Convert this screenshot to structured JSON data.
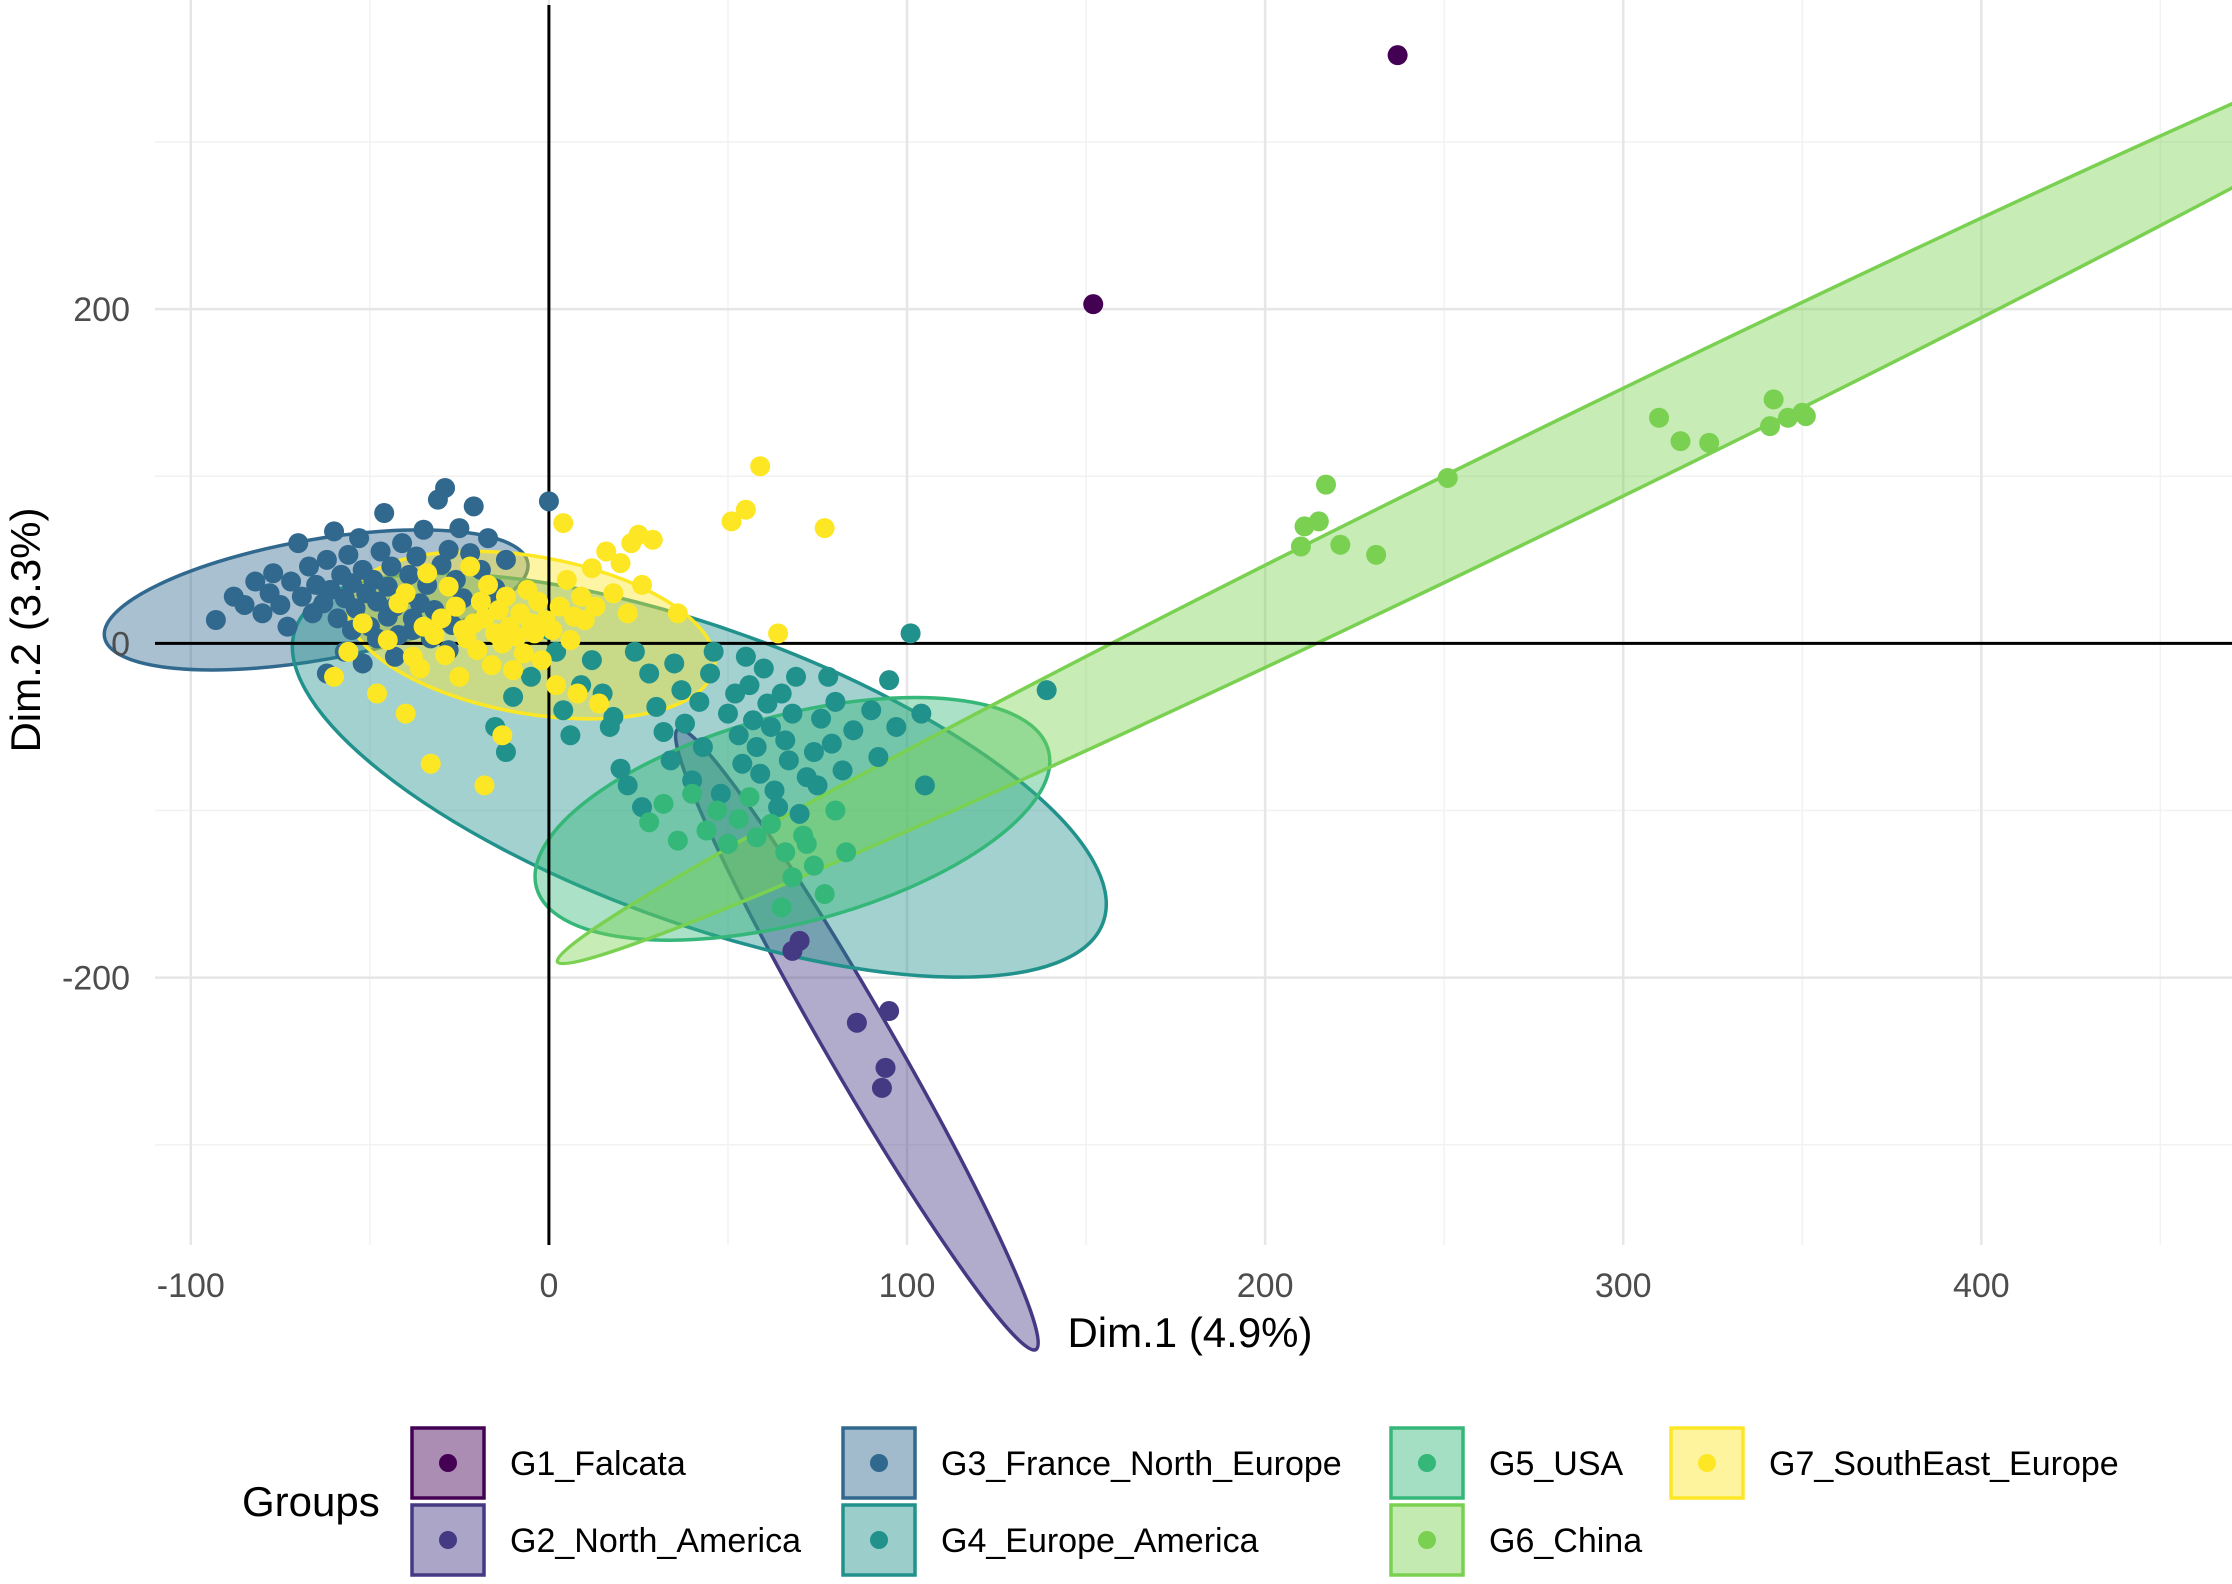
{
  "chart_data": {
    "type": "scatter",
    "xlabel": "Dim.1 (4.9%)",
    "ylabel": "Dim.2 (3.3%)",
    "xlim": [
      -110,
      470
    ],
    "ylim": [
      -360,
      385
    ],
    "x_ticks": [
      -100,
      0,
      100,
      200,
      300,
      400
    ],
    "x_tick_labels": [
      "-100",
      "0",
      "100",
      "200",
      "300",
      "400"
    ],
    "y_ticks": [
      -200,
      0,
      200
    ],
    "y_tick_labels": [
      "-200",
      "0",
      "200"
    ],
    "grid": true,
    "reference_lines": {
      "x": 0,
      "y": 0
    },
    "legend": {
      "title": "Groups",
      "position": "bottom"
    },
    "series": [
      {
        "name": "G1_Falcata",
        "color": "#440154",
        "points": [
          [
            152,
            203
          ],
          [
            237,
            352
          ]
        ],
        "ellipse": null
      },
      {
        "name": "G2_North_America",
        "color": "#443983",
        "points": [
          [
            68,
            -184
          ],
          [
            86,
            -227
          ],
          [
            95,
            -220
          ],
          [
            94,
            -254
          ],
          [
            93,
            -266
          ],
          [
            70,
            -178
          ]
        ],
        "ellipse": {
          "cx": 86,
          "cy": -237,
          "rx": 100,
          "ry": 20,
          "angle_deg": -60
        }
      },
      {
        "name": "G3_France_North_Europe",
        "color": "#31688e",
        "points": [
          [
            -93,
            14
          ],
          [
            -88,
            28
          ],
          [
            -85,
            23
          ],
          [
            -82,
            37
          ],
          [
            -80,
            18
          ],
          [
            -78,
            30
          ],
          [
            -77,
            42
          ],
          [
            -75,
            23
          ],
          [
            -73,
            10
          ],
          [
            -72,
            37
          ],
          [
            -70,
            60
          ],
          [
            -69,
            28
          ],
          [
            -67,
            46
          ],
          [
            -66,
            18
          ],
          [
            -65,
            35
          ],
          [
            -63,
            24
          ],
          [
            -62,
            50
          ],
          [
            -61,
            32
          ],
          [
            -60,
            67
          ],
          [
            -59,
            15
          ],
          [
            -58,
            41
          ],
          [
            -57,
            27
          ],
          [
            -56,
            53
          ],
          [
            -55,
            8
          ],
          [
            -55,
            36
          ],
          [
            -54,
            21
          ],
          [
            -53,
            63
          ],
          [
            -52,
            44
          ],
          [
            -51,
            30
          ],
          [
            -50,
            10
          ],
          [
            -49,
            38
          ],
          [
            -48,
            25
          ],
          [
            -47,
            55
          ],
          [
            -46,
            78
          ],
          [
            -45,
            16
          ],
          [
            -45,
            34
          ],
          [
            -44,
            46
          ],
          [
            -43,
            22
          ],
          [
            -42,
            5
          ],
          [
            -41,
            60
          ],
          [
            -40,
            29
          ],
          [
            -39,
            41
          ],
          [
            -38,
            15
          ],
          [
            -37,
            52
          ],
          [
            -36,
            24
          ],
          [
            -35,
            68
          ],
          [
            -34,
            35
          ],
          [
            -32,
            20
          ],
          [
            -31,
            86
          ],
          [
            -30,
            47
          ],
          [
            -29,
            93
          ],
          [
            -28,
            56
          ],
          [
            -27,
            11
          ],
          [
            -26,
            38
          ],
          [
            -25,
            69
          ],
          [
            -24,
            27
          ],
          [
            -22,
            54
          ],
          [
            -21,
            82
          ],
          [
            -19,
            44
          ],
          [
            -17,
            63
          ],
          [
            -15,
            33
          ],
          [
            -14,
            24
          ],
          [
            -12,
            50
          ],
          [
            -62,
            -18
          ],
          [
            -57,
            -5
          ],
          [
            -52,
            -12
          ],
          [
            -48,
            3
          ],
          [
            -43,
            -8
          ],
          [
            -38,
            8
          ],
          [
            -33,
            3
          ],
          [
            -28,
            -4
          ],
          [
            0,
            85
          ]
        ],
        "ellipse": {
          "cx": -65,
          "cy": 26,
          "rx": 60,
          "ry": 36,
          "angle_deg": 10
        }
      },
      {
        "name": "G4_Europe_America",
        "color": "#21918c",
        "points": [
          [
            -15,
            -50
          ],
          [
            -12,
            -65
          ],
          [
            -10,
            -32
          ],
          [
            -5,
            -20
          ],
          [
            0,
            8
          ],
          [
            2,
            -5
          ],
          [
            4,
            -40
          ],
          [
            6,
            -55
          ],
          [
            9,
            -25
          ],
          [
            12,
            -10
          ],
          [
            15,
            -30
          ],
          [
            18,
            -44
          ],
          [
            20,
            -75
          ],
          [
            22,
            -85
          ],
          [
            24,
            -5
          ],
          [
            26,
            -98
          ],
          [
            28,
            -18
          ],
          [
            30,
            -38
          ],
          [
            32,
            -53
          ],
          [
            34,
            -70
          ],
          [
            35,
            -12
          ],
          [
            37,
            -28
          ],
          [
            38,
            -48
          ],
          [
            40,
            -82
          ],
          [
            42,
            -35
          ],
          [
            43,
            -62
          ],
          [
            45,
            -18
          ],
          [
            46,
            -5
          ],
          [
            48,
            -90
          ],
          [
            50,
            -42
          ],
          [
            52,
            -30
          ],
          [
            53,
            -55
          ],
          [
            54,
            -72
          ],
          [
            55,
            -8
          ],
          [
            56,
            -25
          ],
          [
            57,
            -46
          ],
          [
            58,
            -62
          ],
          [
            59,
            -78
          ],
          [
            60,
            -15
          ],
          [
            61,
            -36
          ],
          [
            62,
            -50
          ],
          [
            63,
            -88
          ],
          [
            64,
            -98
          ],
          [
            65,
            -30
          ],
          [
            66,
            -58
          ],
          [
            67,
            -70
          ],
          [
            68,
            -42
          ],
          [
            69,
            -20
          ],
          [
            70,
            -102
          ],
          [
            72,
            -80
          ],
          [
            74,
            -65
          ],
          [
            75,
            -85
          ],
          [
            76,
            -45
          ],
          [
            78,
            -20
          ],
          [
            79,
            -60
          ],
          [
            80,
            -35
          ],
          [
            82,
            -76
          ],
          [
            85,
            -52
          ],
          [
            90,
            -40
          ],
          [
            92,
            -68
          ],
          [
            95,
            -22
          ],
          [
            97,
            -50
          ],
          [
            101,
            6
          ],
          [
            104,
            -42
          ],
          [
            105,
            -85
          ],
          [
            139,
            -28
          ],
          [
            17,
            -50
          ]
        ],
        "ellipse": {
          "cx": 42,
          "cy": -79,
          "rx": 120,
          "ry": 88,
          "angle_deg": -20
        }
      },
      {
        "name": "G5_USA",
        "color": "#35b779",
        "points": [
          [
            28,
            -107
          ],
          [
            32,
            -96
          ],
          [
            36,
            -118
          ],
          [
            40,
            -90
          ],
          [
            44,
            -112
          ],
          [
            47,
            -100
          ],
          [
            50,
            -120
          ],
          [
            53,
            -105
          ],
          [
            56,
            -92
          ],
          [
            58,
            -116
          ],
          [
            62,
            -108
          ],
          [
            66,
            -125
          ],
          [
            68,
            -140
          ],
          [
            71,
            -115
          ],
          [
            74,
            -133
          ],
          [
            77,
            -150
          ],
          [
            80,
            -100
          ],
          [
            83,
            -125
          ],
          [
            72,
            -120
          ],
          [
            65,
            -158
          ]
        ],
        "ellipse": {
          "cx": 68,
          "cy": -105,
          "rx": 74,
          "ry": 62,
          "angle_deg": 15
        }
      },
      {
        "name": "G6_China",
        "color": "#7ad151",
        "points": [
          [
            210,
            58
          ],
          [
            211,
            70
          ],
          [
            215,
            73
          ],
          [
            217,
            95
          ],
          [
            221,
            59
          ],
          [
            231,
            53
          ],
          [
            251,
            99
          ],
          [
            310,
            135
          ],
          [
            316,
            121
          ],
          [
            324,
            120
          ],
          [
            341,
            130
          ],
          [
            342,
            146
          ],
          [
            346,
            135
          ],
          [
            350,
            138
          ],
          [
            351,
            136
          ]
        ],
        "ellipse": {
          "cx": 290,
          "cy": 110,
          "rx": 320,
          "ry": 29,
          "angle_deg": 26
        }
      },
      {
        "name": "G7_SouthEast_Europe",
        "color": "#fde725",
        "points": [
          [
            -60,
            -20
          ],
          [
            -56,
            -5
          ],
          [
            -52,
            12
          ],
          [
            -48,
            -30
          ],
          [
            -45,
            2
          ],
          [
            -42,
            24
          ],
          [
            -40,
            30
          ],
          [
            -38,
            -8
          ],
          [
            -36,
            -15
          ],
          [
            -35,
            10
          ],
          [
            -34,
            42
          ],
          [
            -33,
            -72
          ],
          [
            -32,
            5
          ],
          [
            -30,
            15
          ],
          [
            -29,
            -7
          ],
          [
            -28,
            34
          ],
          [
            -26,
            22
          ],
          [
            -25,
            -20
          ],
          [
            -24,
            8
          ],
          [
            -23,
            3
          ],
          [
            -22,
            46
          ],
          [
            -21,
            12
          ],
          [
            -20,
            -4
          ],
          [
            -19,
            25
          ],
          [
            -18,
            15
          ],
          [
            -17,
            35
          ],
          [
            -16,
            -13
          ],
          [
            -15,
            6
          ],
          [
            -14,
            20
          ],
          [
            -13,
            0
          ],
          [
            -12,
            28
          ],
          [
            -11,
            10
          ],
          [
            -10,
            -16
          ],
          [
            -9,
            4
          ],
          [
            -8,
            18
          ],
          [
            -7,
            -6
          ],
          [
            -6,
            32
          ],
          [
            -5,
            12
          ],
          [
            -4,
            6
          ],
          [
            -3,
            25
          ],
          [
            -2,
            -10
          ],
          [
            -1,
            14
          ],
          [
            1,
            8
          ],
          [
            2,
            -25
          ],
          [
            3,
            22
          ],
          [
            4,
            72
          ],
          [
            5,
            38
          ],
          [
            6,
            2
          ],
          [
            7,
            16
          ],
          [
            8,
            -30
          ],
          [
            9,
            28
          ],
          [
            10,
            14
          ],
          [
            12,
            45
          ],
          [
            13,
            22
          ],
          [
            14,
            -36
          ],
          [
            16,
            55
          ],
          [
            18,
            30
          ],
          [
            20,
            48
          ],
          [
            22,
            18
          ],
          [
            23,
            60
          ],
          [
            25,
            65
          ],
          [
            26,
            35
          ],
          [
            29,
            62
          ],
          [
            36,
            18
          ],
          [
            51,
            73
          ],
          [
            55,
            80
          ],
          [
            59,
            106
          ],
          [
            64,
            6
          ],
          [
            77,
            69
          ],
          [
            -18,
            -85
          ],
          [
            -40,
            -42
          ],
          [
            -13,
            -55
          ]
        ],
        "ellipse": {
          "cx": -5,
          "cy": 5,
          "rx": 52,
          "ry": 47,
          "angle_deg": -10
        }
      }
    ]
  }
}
